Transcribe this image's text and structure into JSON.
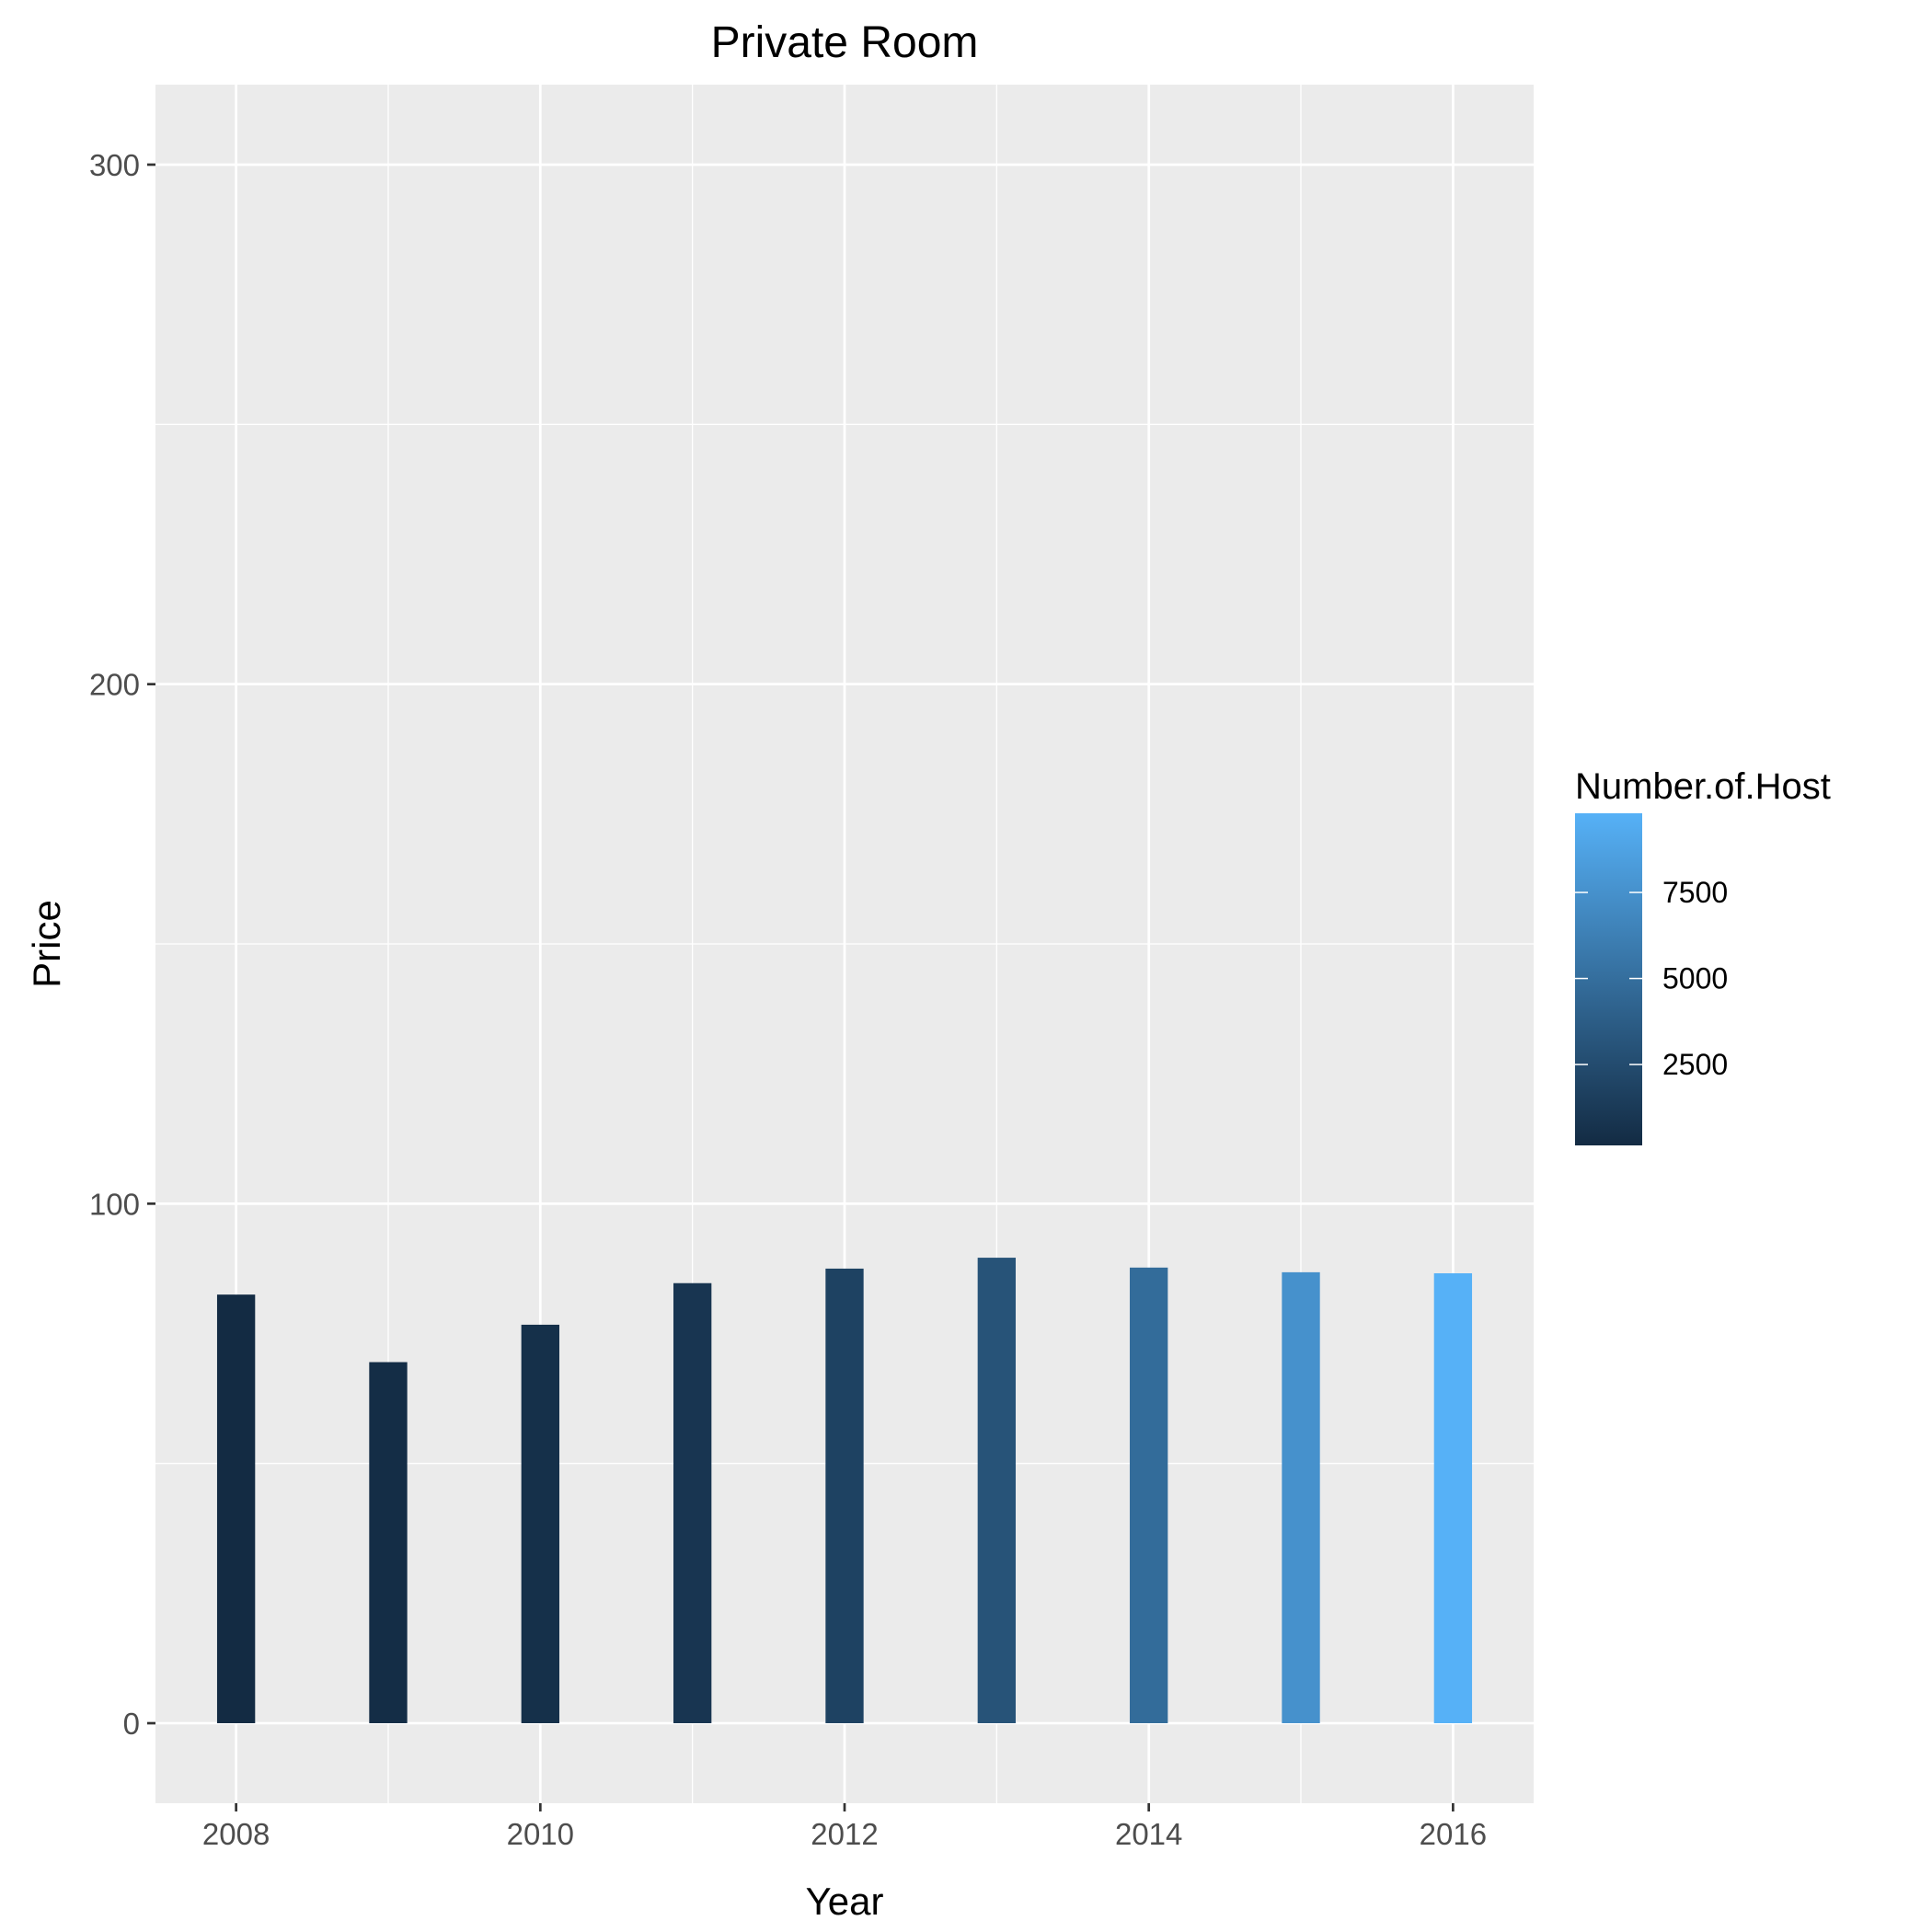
{
  "chart_data": {
    "type": "bar",
    "title": "Private Room",
    "xlabel": "Year",
    "ylabel": "Price",
    "xlim": [
      2007.47,
      2016.53
    ],
    "ylim": [
      -15.4,
      315.4
    ],
    "x_ticks": [
      "2008",
      "2010",
      "2012",
      "2014",
      "2016"
    ],
    "y_ticks": [
      "0",
      "100",
      "200",
      "300"
    ],
    "grid": true,
    "legend_position": "right",
    "x": [
      2008,
      2009,
      2010,
      2011,
      2012,
      2013,
      2014,
      2015,
      2016
    ],
    "values": [
      82.5,
      69.5,
      76.7,
      84.7,
      87.5,
      89.6,
      87.7,
      86.8,
      86.6
    ],
    "number_of_host": [
      150,
      300,
      500,
      900,
      1800,
      3000,
      4800,
      7500,
      9800
    ],
    "colorbar": {
      "title": "Number.of.Host",
      "ticks": [
        "2500",
        "5000",
        "7500"
      ],
      "range": [
        150,
        9800
      ],
      "low_color": "#132B43",
      "high_color": "#56B1F7"
    },
    "colors": {
      "panel_background": "#EBEBEB",
      "grid_major": "#FFFFFF",
      "tick_text": "#4D4D4D"
    }
  }
}
